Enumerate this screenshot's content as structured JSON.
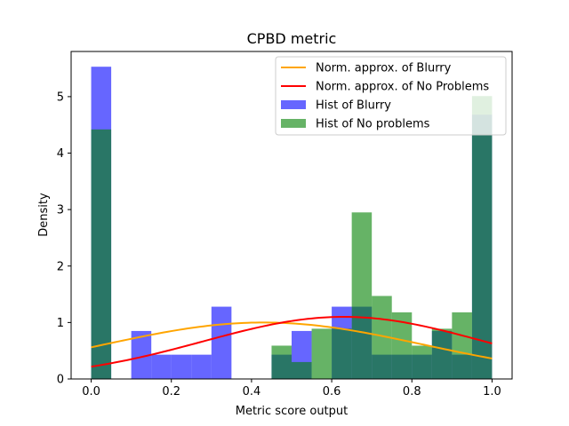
{
  "chart_data": {
    "type": "bar",
    "title": "CPBD metric",
    "xlabel": "Metric score output",
    "ylabel": "Density",
    "xlim": [
      -0.05,
      1.05
    ],
    "ylim": [
      0,
      5.8
    ],
    "xticks": [
      0.0,
      0.2,
      0.4,
      0.6,
      0.8,
      1.0
    ],
    "xtick_labels": [
      "0.0",
      "0.2",
      "0.4",
      "0.6",
      "0.8",
      "1.0"
    ],
    "yticks": [
      0,
      1,
      2,
      3,
      4,
      5
    ],
    "ytick_labels": [
      "0",
      "1",
      "2",
      "3",
      "4",
      "5"
    ],
    "grid": false,
    "legend_position": "top-right",
    "bin_edges": [
      0.0,
      0.05,
      0.1,
      0.15,
      0.2,
      0.25,
      0.3,
      0.35,
      0.4,
      0.45,
      0.5,
      0.55,
      0.6,
      0.65,
      0.7,
      0.75,
      0.8,
      0.85,
      0.9,
      0.95,
      1.0
    ],
    "histograms": [
      {
        "name": "Hist of Blurry",
        "color": "#0000ff",
        "opacity": 0.6,
        "values": [
          5.53,
          0,
          0.85,
          0.43,
          0.43,
          0.43,
          1.28,
          0,
          0,
          0.43,
          0.85,
          0,
          1.28,
          1.28,
          0.43,
          0.43,
          0.43,
          0.85,
          0.43,
          4.68
        ]
      },
      {
        "name": "Hist of No problems",
        "color": "#008000",
        "opacity": 0.6,
        "values": [
          4.42,
          0,
          0,
          0,
          0,
          0,
          0,
          0,
          0,
          0.59,
          0.3,
          0.89,
          0.89,
          2.95,
          1.47,
          1.18,
          0.59,
          0.89,
          1.18,
          5.01
        ]
      }
    ],
    "lines": [
      {
        "name": "Norm. approx. of Blurry",
        "color": "#ffa500",
        "mean": 0.43,
        "std": 0.4,
        "peak": 1.0
      },
      {
        "name": "Norm. approx. of No Problems",
        "color": "#ff0000",
        "mean": 0.63,
        "std": 0.35,
        "peak": 1.1
      }
    ],
    "legend": [
      {
        "label": "Norm. approx. of Blurry",
        "kind": "line",
        "color": "#ffa500"
      },
      {
        "label": "Norm. approx. of No Problems",
        "kind": "line",
        "color": "#ff0000"
      },
      {
        "label": "Hist of Blurry",
        "kind": "patch",
        "color": "#0000ff",
        "opacity": 0.6
      },
      {
        "label": "Hist of No problems",
        "kind": "patch",
        "color": "#008000",
        "opacity": 0.6
      }
    ]
  }
}
